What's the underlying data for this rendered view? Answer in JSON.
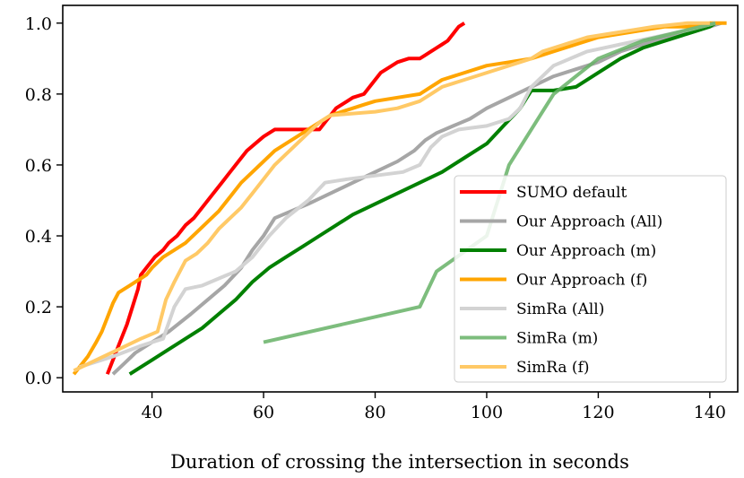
{
  "chart_data": {
    "type": "line",
    "title": "",
    "xlabel": "Duration of crossing the intersection in seconds",
    "ylabel": "",
    "xlim": [
      24,
      145
    ],
    "ylim": [
      -0.04,
      1.05
    ],
    "xticks": [
      40,
      60,
      80,
      100,
      120,
      140
    ],
    "xtick_labels": [
      "40",
      "60",
      "80",
      "100",
      "120",
      "140"
    ],
    "yticks": [
      0.0,
      0.2,
      0.4,
      0.6,
      0.8,
      1.0
    ],
    "ytick_labels": [
      "0.0",
      "0.2",
      "0.4",
      "0.6",
      "0.8",
      "1.0"
    ],
    "grid": false,
    "legend_position": "lower-right",
    "series": [
      {
        "name": "SUMO default",
        "color": "#ff0000",
        "opacity": 1,
        "x": [
          32,
          32.5,
          33.5,
          34.5,
          35.5,
          36.5,
          37.5,
          38,
          39,
          40.5,
          42,
          43,
          44.5,
          46,
          47.5,
          49,
          51,
          52.5,
          54,
          55.5,
          57,
          58.5,
          60,
          61,
          62,
          70,
          71,
          72,
          73,
          74,
          75,
          76,
          78,
          79,
          80,
          81,
          82,
          84,
          86,
          88,
          89,
          90,
          91,
          92,
          93,
          94,
          95,
          96
        ],
        "y": [
          0.01,
          0.03,
          0.07,
          0.11,
          0.15,
          0.2,
          0.25,
          0.29,
          0.31,
          0.34,
          0.36,
          0.38,
          0.4,
          0.43,
          0.45,
          0.48,
          0.52,
          0.55,
          0.58,
          0.61,
          0.64,
          0.66,
          0.68,
          0.69,
          0.7,
          0.7,
          0.72,
          0.74,
          0.76,
          0.77,
          0.78,
          0.79,
          0.8,
          0.82,
          0.84,
          0.86,
          0.87,
          0.89,
          0.9,
          0.9,
          0.91,
          0.92,
          0.93,
          0.94,
          0.95,
          0.97,
          0.99,
          1.0
        ]
      },
      {
        "name": "Our Approach (All)",
        "color": "#a6a6a6",
        "opacity": 1,
        "x": [
          33,
          35,
          37,
          40,
          43,
          47,
          50,
          53,
          56,
          58,
          60,
          62,
          65,
          68,
          72,
          76,
          80,
          84,
          87,
          89,
          91,
          94,
          97,
          100,
          104,
          108,
          112,
          116,
          120,
          124,
          128,
          132,
          136,
          140,
          142
        ],
        "y": [
          0.01,
          0.04,
          0.07,
          0.1,
          0.13,
          0.18,
          0.22,
          0.26,
          0.31,
          0.36,
          0.4,
          0.45,
          0.47,
          0.49,
          0.52,
          0.55,
          0.58,
          0.61,
          0.64,
          0.67,
          0.69,
          0.71,
          0.73,
          0.76,
          0.79,
          0.82,
          0.85,
          0.87,
          0.89,
          0.92,
          0.94,
          0.96,
          0.97,
          0.99,
          1.0
        ]
      },
      {
        "name": "Our Approach (m)",
        "color": "#008000",
        "opacity": 1,
        "x": [
          36,
          38,
          40,
          43,
          46,
          49,
          52,
          55,
          58,
          61,
          64,
          67,
          70,
          73,
          76,
          80,
          84,
          88,
          92,
          96,
          100,
          103,
          106,
          108,
          112,
          116,
          120,
          124,
          128,
          132,
          136,
          140,
          141
        ],
        "y": [
          0.01,
          0.03,
          0.05,
          0.08,
          0.11,
          0.14,
          0.18,
          0.22,
          0.27,
          0.31,
          0.34,
          0.37,
          0.4,
          0.43,
          0.46,
          0.49,
          0.52,
          0.55,
          0.58,
          0.62,
          0.66,
          0.71,
          0.76,
          0.81,
          0.81,
          0.82,
          0.86,
          0.9,
          0.93,
          0.95,
          0.97,
          0.99,
          1.0
        ]
      },
      {
        "name": "Our Approach (f)",
        "color": "#ffa500",
        "opacity": 1,
        "x": [
          26,
          27,
          28.5,
          30,
          31,
          32,
          33,
          34,
          35,
          36,
          37,
          38,
          39,
          40,
          42,
          44,
          46,
          48,
          50,
          52,
          54,
          56,
          58,
          60,
          62,
          64,
          66,
          68,
          70,
          72,
          74,
          76,
          78,
          80,
          84,
          88,
          90,
          92,
          96,
          100,
          104,
          108,
          112,
          116,
          120,
          124,
          128,
          132,
          136,
          140,
          143
        ],
        "y": [
          0.01,
          0.03,
          0.06,
          0.1,
          0.13,
          0.17,
          0.21,
          0.24,
          0.25,
          0.26,
          0.27,
          0.28,
          0.29,
          0.31,
          0.34,
          0.36,
          0.38,
          0.41,
          0.44,
          0.47,
          0.51,
          0.55,
          0.58,
          0.61,
          0.64,
          0.66,
          0.68,
          0.7,
          0.72,
          0.74,
          0.75,
          0.76,
          0.77,
          0.78,
          0.79,
          0.8,
          0.82,
          0.84,
          0.86,
          0.88,
          0.89,
          0.9,
          0.92,
          0.94,
          0.96,
          0.97,
          0.98,
          0.99,
          0.99,
          1.0,
          1.0
        ]
      },
      {
        "name": "SimRa (All)",
        "color": "#d3d3d3",
        "opacity": 1,
        "x": [
          27,
          33,
          38,
          42,
          44,
          46,
          49,
          52,
          55,
          58,
          61,
          64,
          68,
          71,
          75,
          80,
          85,
          88,
          90,
          92,
          95,
          100,
          104,
          106,
          108,
          112,
          118,
          124,
          130,
          136,
          141
        ],
        "y": [
          0.03,
          0.06,
          0.09,
          0.11,
          0.2,
          0.25,
          0.26,
          0.28,
          0.3,
          0.34,
          0.4,
          0.45,
          0.5,
          0.55,
          0.56,
          0.57,
          0.58,
          0.6,
          0.65,
          0.68,
          0.7,
          0.71,
          0.73,
          0.76,
          0.82,
          0.88,
          0.92,
          0.94,
          0.96,
          0.98,
          1.0
        ]
      },
      {
        "name": "SimRa (m)",
        "color": "#66b266",
        "opacity": 0.85,
        "x": [
          60,
          88,
          91,
          100,
          104,
          108,
          112,
          116,
          120,
          128,
          141
        ],
        "y": [
          0.1,
          0.2,
          0.3,
          0.4,
          0.6,
          0.7,
          0.8,
          0.85,
          0.9,
          0.95,
          1.0
        ]
      },
      {
        "name": "SimRa (f)",
        "color": "#ffc966",
        "opacity": 1,
        "x": [
          26,
          30,
          34,
          38,
          41,
          42.5,
          44,
          46,
          48,
          50,
          52,
          54,
          56,
          58,
          60,
          62,
          64,
          66,
          68,
          70,
          72,
          80,
          84,
          88,
          90,
          92,
          96,
          100,
          104,
          108,
          110,
          114,
          118,
          122,
          126,
          130,
          136,
          140
        ],
        "y": [
          0.02,
          0.05,
          0.08,
          0.11,
          0.13,
          0.22,
          0.27,
          0.33,
          0.35,
          0.38,
          0.42,
          0.45,
          0.48,
          0.52,
          0.56,
          0.6,
          0.63,
          0.66,
          0.69,
          0.72,
          0.74,
          0.75,
          0.76,
          0.78,
          0.8,
          0.82,
          0.84,
          0.86,
          0.88,
          0.9,
          0.92,
          0.94,
          0.96,
          0.97,
          0.98,
          0.99,
          1.0,
          1.0
        ]
      }
    ]
  }
}
